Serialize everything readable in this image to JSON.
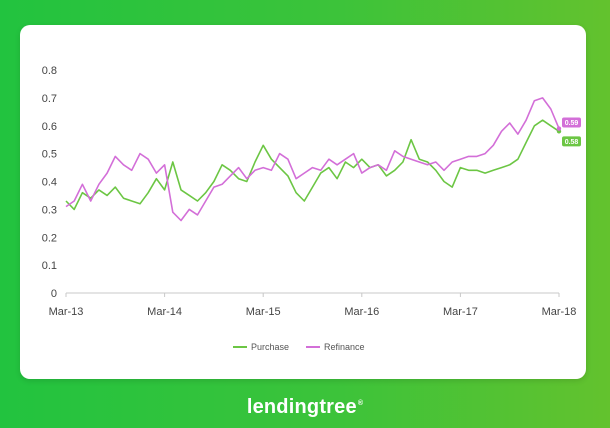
{
  "brand": {
    "name": "lendingtree",
    "trademark": "®"
  },
  "chart_data": {
    "type": "line",
    "title": "",
    "xlabel": "",
    "ylabel": "",
    "ylim": [
      0,
      0.8
    ],
    "yticks": [
      "0",
      "0.1",
      "0.2",
      "0.3",
      "0.4",
      "0.5",
      "0.6",
      "0.7",
      "0.8"
    ],
    "x_ticks": [
      "Mar-13",
      "Mar-14",
      "Mar-15",
      "Mar-16",
      "Mar-17",
      "Mar-18"
    ],
    "x_tick_index": [
      0,
      12,
      24,
      36,
      48,
      60
    ],
    "grid": false,
    "legend_position": "bottom-center",
    "colors": {
      "Purchase": "#6cc644",
      "Refinance": "#d36fd8"
    },
    "end_labels": {
      "Purchase": "0.58",
      "Refinance": "0.59"
    },
    "series": [
      {
        "name": "Purchase",
        "values": [
          0.33,
          0.3,
          0.36,
          0.34,
          0.37,
          0.35,
          0.38,
          0.34,
          0.33,
          0.32,
          0.36,
          0.41,
          0.37,
          0.47,
          0.37,
          0.35,
          0.33,
          0.36,
          0.4,
          0.46,
          0.44,
          0.41,
          0.4,
          0.47,
          0.53,
          0.48,
          0.45,
          0.42,
          0.36,
          0.33,
          0.38,
          0.43,
          0.45,
          0.41,
          0.47,
          0.45,
          0.48,
          0.45,
          0.46,
          0.42,
          0.44,
          0.47,
          0.55,
          0.48,
          0.47,
          0.44,
          0.4,
          0.38,
          0.45,
          0.44,
          0.44,
          0.43,
          0.44,
          0.45,
          0.46,
          0.48,
          0.54,
          0.6,
          0.62,
          0.6,
          0.58
        ]
      },
      {
        "name": "Refinance",
        "values": [
          0.31,
          0.33,
          0.39,
          0.33,
          0.39,
          0.43,
          0.49,
          0.46,
          0.44,
          0.5,
          0.48,
          0.43,
          0.46,
          0.29,
          0.26,
          0.3,
          0.28,
          0.33,
          0.38,
          0.39,
          0.42,
          0.45,
          0.41,
          0.44,
          0.45,
          0.44,
          0.5,
          0.48,
          0.41,
          0.43,
          0.45,
          0.44,
          0.48,
          0.46,
          0.48,
          0.5,
          0.43,
          0.45,
          0.46,
          0.44,
          0.51,
          0.49,
          0.48,
          0.47,
          0.46,
          0.47,
          0.44,
          0.47,
          0.48,
          0.49,
          0.49,
          0.5,
          0.53,
          0.58,
          0.61,
          0.57,
          0.62,
          0.69,
          0.7,
          0.66,
          0.59
        ]
      }
    ]
  }
}
